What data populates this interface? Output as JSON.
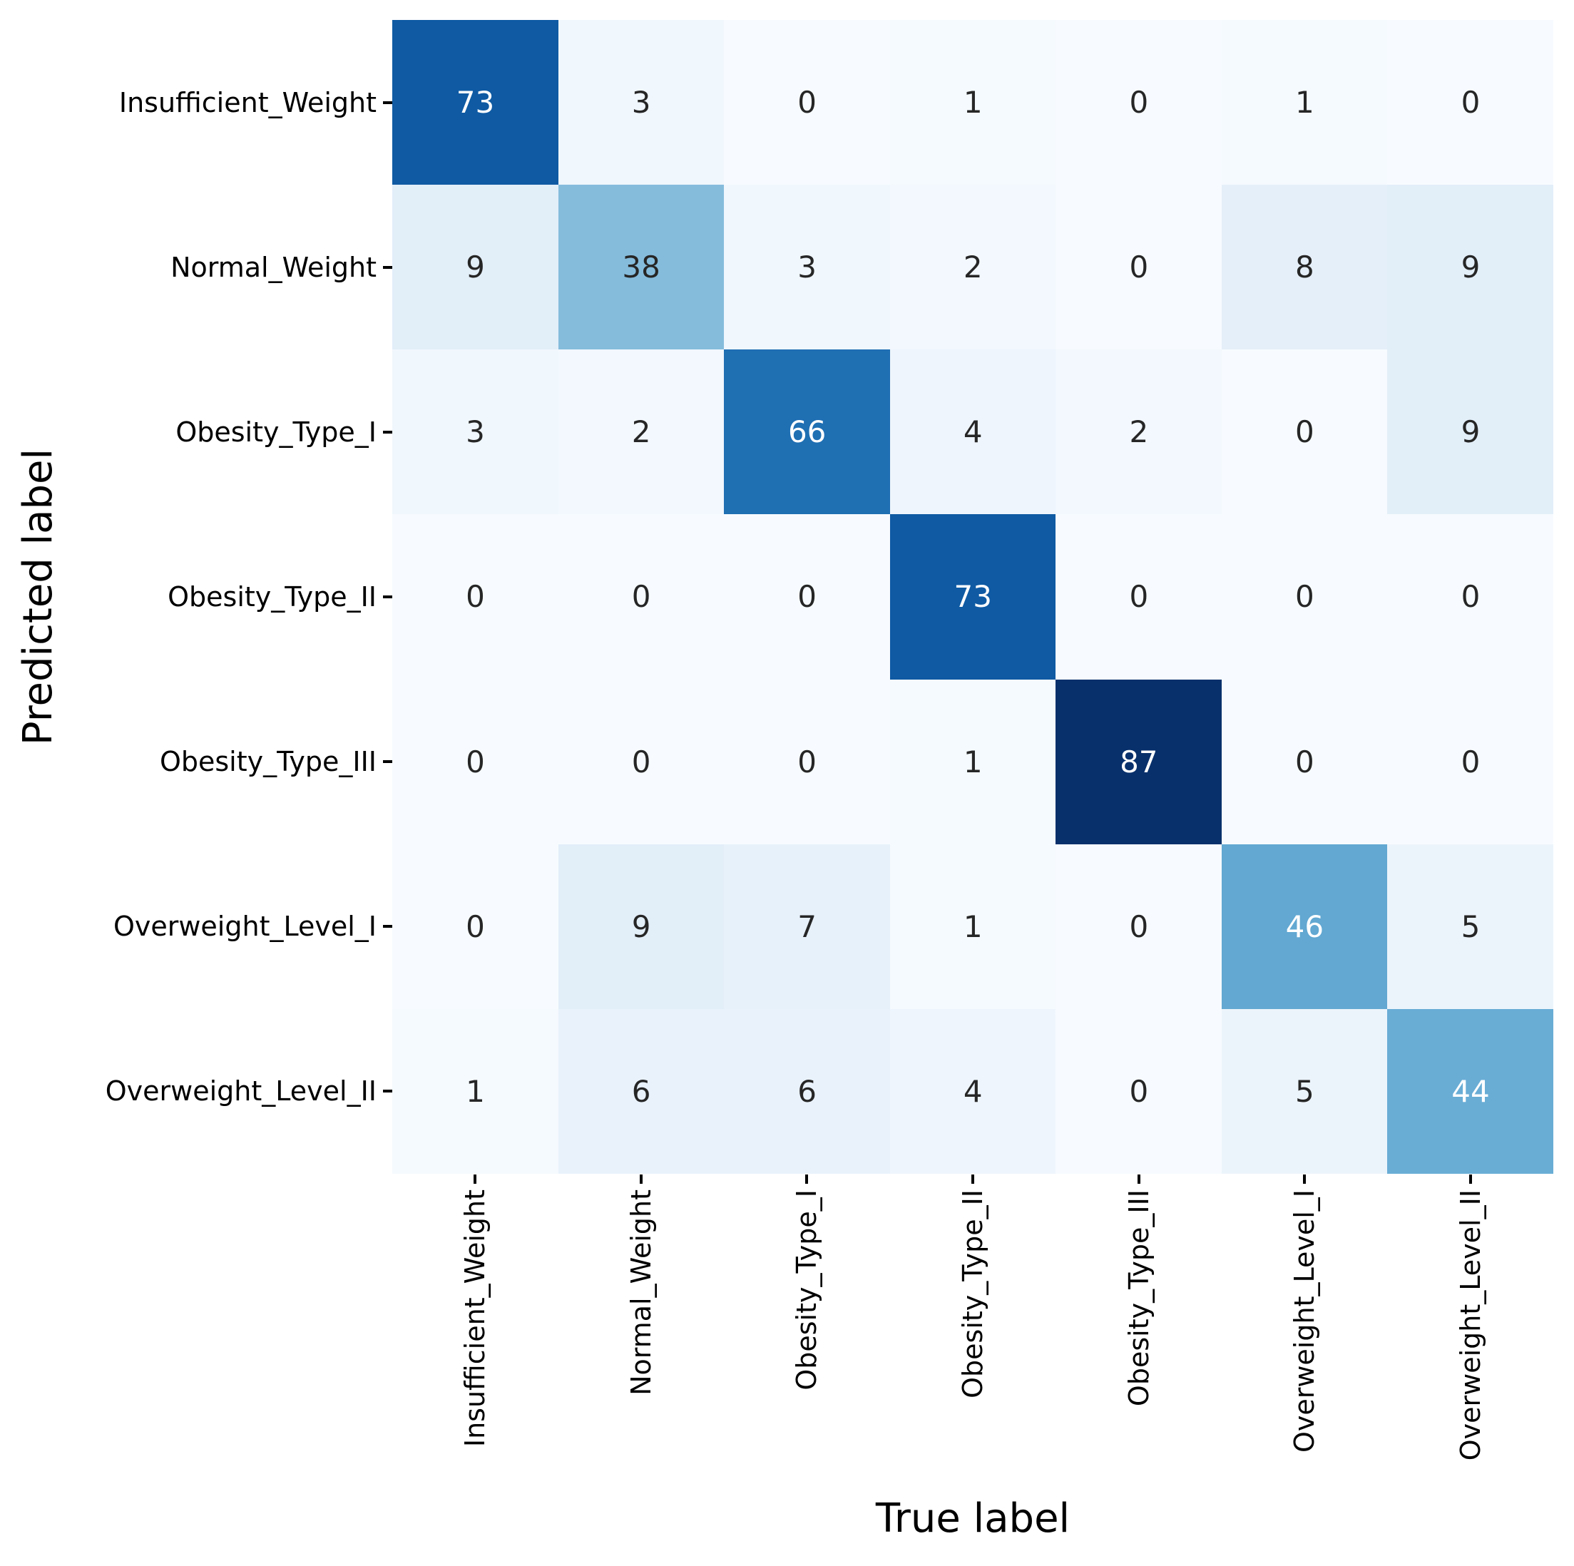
{
  "chart_data": {
    "type": "heatmap",
    "title": "",
    "xlabel": "True label",
    "ylabel": "Predicted label",
    "x_categories": [
      "Insufficient_Weight",
      "Normal_Weight",
      "Obesity_Type_I",
      "Obesity_Type_II",
      "Obesity_Type_III",
      "Overweight_Level_I",
      "Overweight_Level_II"
    ],
    "y_categories": [
      "Insufficient_Weight",
      "Normal_Weight",
      "Obesity_Type_I",
      "Obesity_Type_II",
      "Obesity_Type_III",
      "Overweight_Level_I",
      "Overweight_Level_II"
    ],
    "matrix": [
      [
        73,
        3,
        0,
        1,
        0,
        1,
        0
      ],
      [
        9,
        38,
        3,
        2,
        0,
        8,
        9
      ],
      [
        3,
        2,
        66,
        4,
        2,
        0,
        9
      ],
      [
        0,
        0,
        0,
        73,
        0,
        0,
        0
      ],
      [
        0,
        0,
        0,
        1,
        87,
        0,
        0
      ],
      [
        0,
        9,
        7,
        1,
        0,
        46,
        5
      ],
      [
        1,
        6,
        6,
        4,
        0,
        5,
        44
      ]
    ],
    "vmin": 0,
    "vmax": 87,
    "colormap": "Blues",
    "colormap_stops": [
      "#f7fbff",
      "#deebf7",
      "#c6dbef",
      "#9ecae1",
      "#6baed6",
      "#4292c6",
      "#2171b5",
      "#08519c",
      "#08306b"
    ],
    "annotation_color_dark": "#262626",
    "annotation_color_light": "#ffffff",
    "tick_color": "#000000",
    "background": "#ffffff",
    "grid": false,
    "legend": "none"
  }
}
